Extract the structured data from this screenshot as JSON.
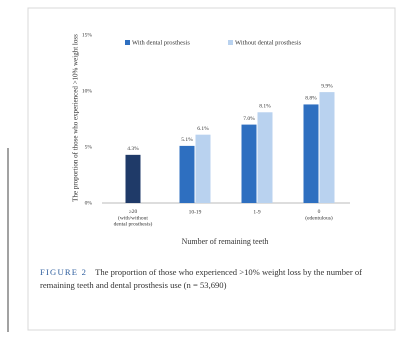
{
  "chart_data": {
    "type": "bar",
    "caption_label": "FIGURE 2",
    "caption": "The proportion of those who experienced >10% weight loss by the number of remaining teeth and dental prosthesis use (n = 53,690)",
    "ylabel": "The proportion of those who experienced >10% weight loss",
    "xlabel": "Number of remaining teeth",
    "categories": [
      "≥20\n(with/without\ndental prosthesis)",
      "10-19",
      "1-9",
      "0\n(edentulous)"
    ],
    "series": [
      {
        "name": "With dental prosthesis",
        "color": "#2e6fc0",
        "colors": [
          "#1f3a68",
          "#2e6fc0",
          "#2e6fc0",
          "#2e6fc0"
        ],
        "values": [
          4.3,
          5.1,
          7.0,
          8.8
        ],
        "value_labels": [
          "4.3%",
          "5.1%",
          "7.0%",
          "8.8%"
        ]
      },
      {
        "name": "Without dental prosthesis",
        "color": "#b9d2ef",
        "values": [
          null,
          6.1,
          8.1,
          9.9
        ],
        "value_labels": [
          null,
          "6.1%",
          "8.1%",
          "9.9%"
        ]
      }
    ],
    "ylim": [
      0,
      15
    ],
    "yticks": [
      {
        "value": 0,
        "label": "0%"
      },
      {
        "value": 5,
        "label": "5%"
      },
      {
        "value": 10,
        "label": "10%"
      },
      {
        "value": 15,
        "label": "15%"
      }
    ],
    "grid": false,
    "legend": "top"
  }
}
